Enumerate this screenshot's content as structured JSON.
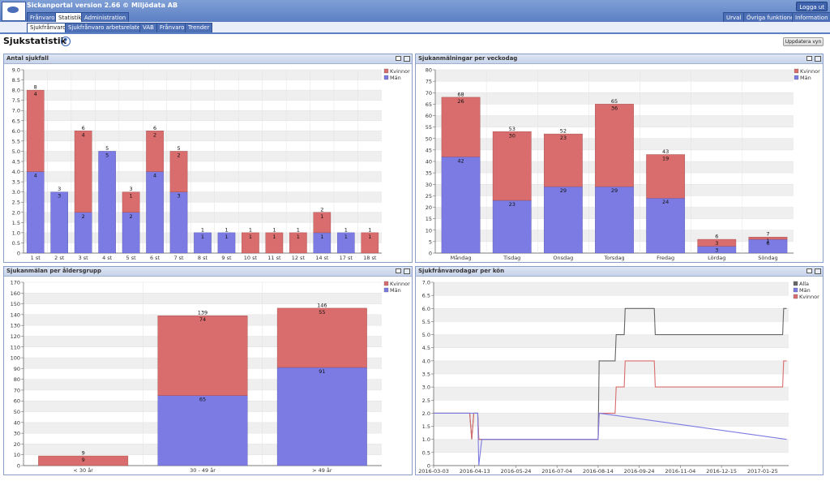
{
  "app": {
    "title": "Sickanportal version 2.66   © Miljödata AB",
    "logout": "Logga ut"
  },
  "top_tabs": [
    "Frånvaro",
    "Statistik",
    "Administration"
  ],
  "right_tabs": [
    "Urval",
    "Övriga funktioner",
    "Information"
  ],
  "sub_tabs": [
    "Sjukfrånvaro",
    "Sjukfrånvaro arbetsrelaterat",
    "VAB",
    "Frånvaro",
    "Trender"
  ],
  "page": {
    "title": "Sjukstatistik",
    "update_button": "Uppdatera vyn"
  },
  "colors": {
    "kvinnor": "#d96c6c",
    "man": "#7b7be3",
    "alla": "#666666"
  },
  "chart_data": [
    {
      "type": "bar",
      "title": "Antal sjukfall",
      "stacked": true,
      "legend": [
        "Kvinnor",
        "Män"
      ],
      "categories": [
        "1 st",
        "2 st",
        "3 st",
        "4 st",
        "5 st",
        "6 st",
        "7 st",
        "8 st",
        "9 st",
        "10 st",
        "11 st",
        "12 st",
        "14 st",
        "17 st",
        "18 st"
      ],
      "series": [
        {
          "name": "Män",
          "values": [
            4,
            3,
            2,
            5,
            2,
            4,
            3,
            1,
            1,
            0,
            0,
            0,
            1,
            1,
            0
          ]
        },
        {
          "name": "Kvinnor",
          "values": [
            4,
            0,
            4,
            0,
            1,
            2,
            2,
            0,
            0,
            1,
            1,
            1,
            1,
            0,
            1
          ]
        }
      ],
      "totals": [
        8,
        3,
        6,
        5,
        3,
        6,
        5,
        1,
        1,
        1,
        1,
        1,
        2,
        1,
        1
      ],
      "ylim": [
        0,
        9
      ],
      "yticks": [
        "0",
        "0.5",
        "1.0",
        "1.5",
        "2.0",
        "2.5",
        "3.0",
        "3.5",
        "4.0",
        "4.5",
        "5.0",
        "5.5",
        "6.0",
        "6.5",
        "7.0",
        "7.5",
        "8.0",
        "8.5",
        "9.0"
      ],
      "ystep": 0.5
    },
    {
      "type": "bar",
      "title": "Sjukanmälningar per veckodag",
      "stacked": true,
      "legend": [
        "Kvinnor",
        "Män"
      ],
      "categories": [
        "Måndag",
        "Tisdag",
        "Onsdag",
        "Torsdag",
        "Fredag",
        "Lördag",
        "Söndag"
      ],
      "series": [
        {
          "name": "Män",
          "values": [
            42,
            23,
            29,
            29,
            24,
            3,
            6
          ]
        },
        {
          "name": "Kvinnor",
          "values": [
            26,
            30,
            23,
            36,
            19,
            3,
            1
          ]
        }
      ],
      "totals": [
        68,
        53,
        52,
        65,
        43,
        6,
        7
      ],
      "ylim": [
        0,
        80
      ],
      "yticks": [
        "0",
        "5",
        "10",
        "15",
        "20",
        "25",
        "30",
        "35",
        "40",
        "45",
        "50",
        "55",
        "60",
        "65",
        "70",
        "75",
        "80"
      ],
      "ystep": 5
    },
    {
      "type": "bar",
      "title": "Sjukanmälan per åldersgrupp",
      "stacked": true,
      "legend": [
        "Kvinnor",
        "Män"
      ],
      "categories": [
        "< 30 år",
        "30 - 49 år",
        "> 49 år"
      ],
      "series": [
        {
          "name": "Män",
          "values": [
            0,
            65,
            91
          ]
        },
        {
          "name": "Kvinnor",
          "values": [
            9,
            74,
            55
          ]
        }
      ],
      "totals": [
        9,
        139,
        146
      ],
      "ylim": [
        0,
        170
      ],
      "yticks": [
        "0",
        "10",
        "20",
        "30",
        "40",
        "50",
        "60",
        "70",
        "80",
        "90",
        "100",
        "110",
        "120",
        "130",
        "140",
        "150",
        "160",
        "170"
      ],
      "ystep": 10
    },
    {
      "type": "line",
      "title": "Sjukfrånvarodagar per kön",
      "legend": [
        "Alla",
        "Män",
        "Kvinnor"
      ],
      "xlabels": [
        "2016-03-03",
        "2016-04-13",
        "2016-05-24",
        "2016-07-04",
        "2016-08-14",
        "2016-09-24",
        "2016-11-04",
        "2016-12-15",
        "2017-01-25"
      ],
      "xrange": [
        "2016-03-03",
        "2017-02-20"
      ],
      "ylim": [
        0,
        7
      ],
      "yticks": [
        "0",
        "0.5",
        "1.0",
        "1.5",
        "2.0",
        "2.5",
        "3.0",
        "3.5",
        "4.0",
        "4.5",
        "5.0",
        "5.5",
        "6.0",
        "6.5",
        "7.0"
      ],
      "ystep": 0.5,
      "series": [
        {
          "name": "Alla",
          "x": [
            "2016-03-03",
            "2016-04-08",
            "2016-04-10",
            "2016-04-12",
            "2016-04-16",
            "2016-04-17",
            "2016-04-20",
            "2016-08-14",
            "2016-08-15",
            "2016-08-31",
            "2016-09-01",
            "2016-09-09",
            "2016-09-10",
            "2016-10-09",
            "2016-10-10",
            "2017-02-14",
            "2017-02-15",
            "2017-02-18"
          ],
          "y": [
            2,
            2,
            1,
            2,
            2,
            1,
            1,
            1,
            4,
            4,
            5,
            5,
            6,
            6,
            5,
            5,
            6,
            6
          ]
        },
        {
          "name": "Kvinnor",
          "x": [
            "2016-03-03",
            "2016-04-08",
            "2016-04-10",
            "2016-04-12",
            "2016-04-16",
            "2016-04-17",
            "2016-04-20",
            "2016-08-14",
            "2016-08-15",
            "2016-08-31",
            "2016-09-01",
            "2016-09-09",
            "2016-09-10",
            "2016-10-09",
            "2016-10-10",
            "2017-02-14",
            "2017-02-15",
            "2017-02-18"
          ],
          "y": [
            2,
            2,
            1,
            2,
            2,
            1,
            1,
            1,
            2,
            2,
            3,
            3,
            4,
            4,
            3,
            3,
            4,
            4
          ]
        },
        {
          "name": "Män",
          "x": [
            "2016-03-03",
            "2016-04-16",
            "2016-04-17",
            "2016-04-20",
            "2016-08-14",
            "2016-08-15",
            "2017-02-18"
          ],
          "y": [
            2,
            2,
            0,
            1,
            1,
            2,
            1
          ]
        }
      ]
    }
  ]
}
